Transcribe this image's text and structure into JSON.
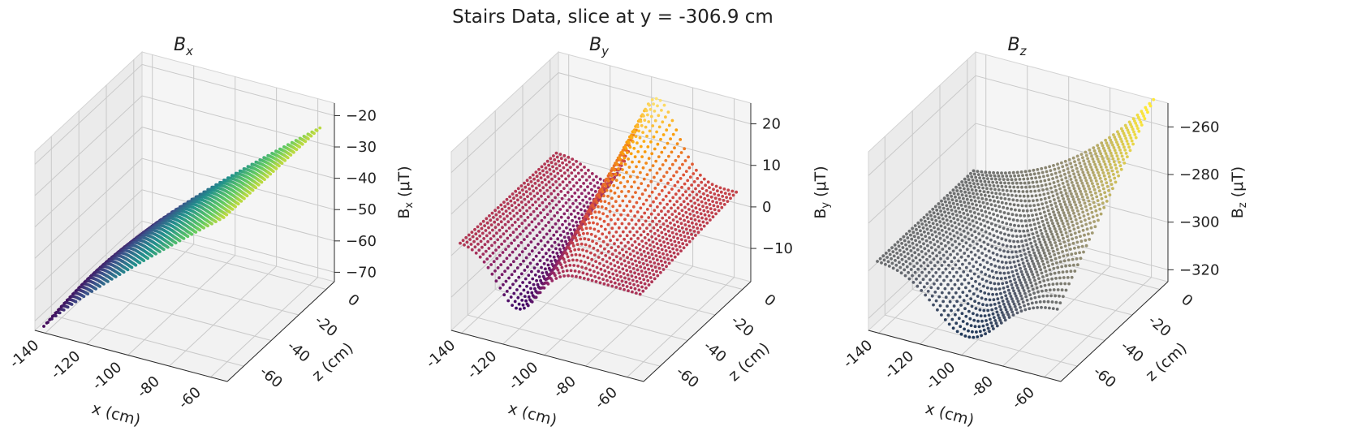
{
  "title": "Stairs Data, slice at y = -306.9 cm",
  "chart_data": [
    {
      "type": "scatter",
      "subplot_title": {
        "main": "B",
        "sub": "x"
      },
      "xlabel": "x (cm)",
      "ylabel": "z (cm)",
      "zlabel": {
        "main": "B",
        "sub": "x",
        "unit": " (μT)"
      },
      "xticks": [
        "-140",
        "-120",
        "-100",
        "-80",
        "-60"
      ],
      "yticks": [
        "-60",
        "-40",
        "-20",
        "0"
      ],
      "zticks": [
        "−70",
        "−60",
        "−50",
        "−40",
        "−30",
        "−20"
      ],
      "xlim": [
        -145,
        -52
      ],
      "ylim": [
        -72,
        6
      ],
      "zlim": [
        -73,
        -16
      ],
      "colormap": "viridis",
      "colors": [
        "#440154",
        "#3b528b",
        "#21918c",
        "#5ec962",
        "#fde725"
      ],
      "surface": {
        "description": "Bx rises from about -72 at low x to about -22 at high x, nearly flat in z"
      },
      "grid": true
    },
    {
      "type": "scatter",
      "subplot_title": {
        "main": "B",
        "sub": "y"
      },
      "xlabel": "x (cm)",
      "ylabel": "z (cm)",
      "zlabel": {
        "main": "B",
        "sub": "y",
        "unit": " (μT)"
      },
      "xticks": [
        "-140",
        "-120",
        "-100",
        "-80",
        "-60"
      ],
      "yticks": [
        "-60",
        "-40",
        "-20",
        "0"
      ],
      "zticks": [
        "−10",
        "0",
        "10",
        "20"
      ],
      "xlim": [
        -145,
        -52
      ],
      "ylim": [
        -72,
        6
      ],
      "zlim": [
        -18,
        25
      ],
      "colormap": "inferno",
      "colors": [
        "#000004",
        "#420a68",
        "#932667",
        "#dd513a",
        "#fca50a",
        "#fcffa4"
      ],
      "surface": {
        "description": "By saddle: dips near -12 at x about -120, peaks near 17 at x about -90 for high z, flattens near 2 at x = -55"
      },
      "grid": true
    },
    {
      "type": "scatter",
      "subplot_title": {
        "main": "B",
        "sub": "z"
      },
      "xlabel": "x (cm)",
      "ylabel": "z (cm)",
      "zlabel": {
        "main": "B",
        "sub": "z",
        "unit": " (μT)"
      },
      "xticks": [
        "-140",
        "-120",
        "-100",
        "-80",
        "-60"
      ],
      "yticks": [
        "-60",
        "-40",
        "-20",
        "0"
      ],
      "zticks": [
        "−320",
        "−300",
        "−280",
        "−260"
      ],
      "xlim": [
        -145,
        -52
      ],
      "ylim": [
        -72,
        6
      ],
      "zlim": [
        -325,
        -250
      ],
      "colormap": "cividis",
      "colors": [
        "#00224e",
        "#575d6d",
        "#a59c74",
        "#fee838"
      ],
      "surface": {
        "description": "Bz near -296 at low x, dips to about -318 at mid x low z, rises to about -258 at high x high z"
      },
      "grid": true
    }
  ]
}
